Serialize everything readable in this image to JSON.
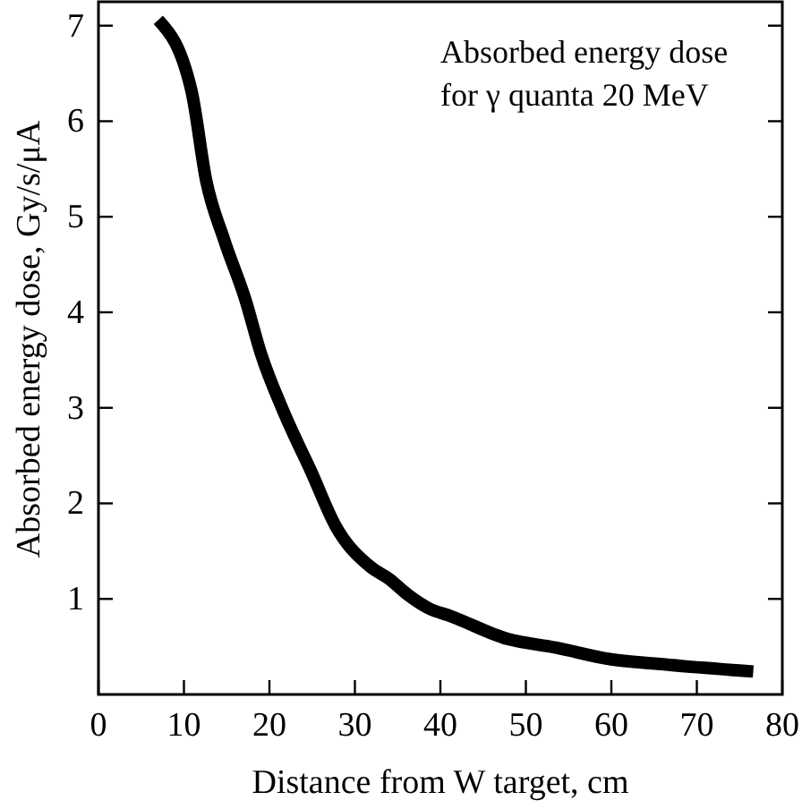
{
  "chart_data": {
    "type": "line",
    "xlabel": "Distance from W target, cm",
    "ylabel": "Absorbed energy dose, Gy/s/μA",
    "annotations": [
      "Absorbed energy dose\nfor γ quanta 20 MeV"
    ],
    "x": [
      7.0,
      10.9,
      12.6,
      14.7,
      17.2,
      19.0,
      21.7,
      24.9,
      27.7,
      31.9,
      34.0,
      36.1,
      38.9,
      40.9,
      47.9,
      53.5,
      59.8,
      65.4,
      76.6
    ],
    "series": [
      {
        "color": "#000000",
        "values": [
          7.06,
          6.31,
          5.38,
          4.76,
          4.13,
          3.57,
          2.95,
          2.33,
          1.77,
          1.33,
          1.21,
          1.05,
          0.89,
          0.83,
          0.58,
          0.49,
          0.37,
          0.32,
          0.24
        ]
      }
    ],
    "xlim": [
      0,
      80
    ],
    "ylim": [
      0,
      7.25
    ],
    "xticks": [
      0,
      10,
      20,
      30,
      40,
      50,
      60,
      70,
      80
    ],
    "yticks": [
      1,
      2,
      3,
      4,
      5,
      6,
      7
    ],
    "grid": false,
    "marker": "none",
    "line_style": "solid"
  }
}
